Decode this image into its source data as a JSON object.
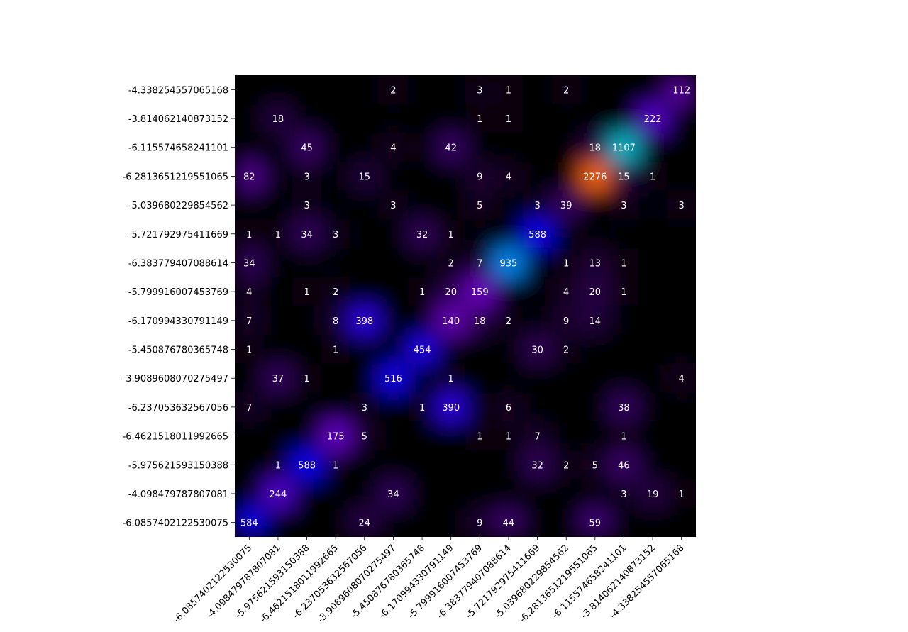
{
  "chart_data": {
    "type": "heatmap",
    "title": "",
    "xlabel": "",
    "ylabel": "",
    "colormap": "gnuplot2",
    "background": "#000000",
    "x_categories": [
      "-6.0857402122530075",
      "-4.098479787807081",
      "-5.975621593150388",
      "-6.4621518011992665",
      "-6.237053632567056",
      "-3.9089608070275497",
      "-5.450876780365748",
      "-6.170994330791149",
      "-5.799916007453769",
      "-6.383779407088614",
      "-5.721792975411669",
      "-5.039680229854562",
      "-6.2813651219551065",
      "-6.115574658241101",
      "-3.814062140873152",
      "-4.338254557065168"
    ],
    "y_categories": [
      "-4.338254557065168",
      "-3.814062140873152",
      "-6.115574658241101",
      "-6.2813651219551065",
      "-5.039680229854562",
      "-5.721792975411669",
      "-6.383779407088614",
      "-5.799916007453769",
      "-6.170994330791149",
      "-5.450876780365748",
      "-3.9089608070275497",
      "-6.237053632567056",
      "-6.4621518011992665",
      "-5.975621593150388",
      "-4.098479787807081",
      "-6.0857402122530075"
    ],
    "matrix": [
      [
        0,
        0,
        0,
        0,
        0,
        2,
        0,
        0,
        3,
        1,
        0,
        2,
        0,
        0,
        0,
        112
      ],
      [
        0,
        18,
        0,
        0,
        0,
        0,
        0,
        0,
        1,
        1,
        0,
        0,
        0,
        0,
        222,
        0
      ],
      [
        0,
        0,
        45,
        0,
        0,
        4,
        0,
        42,
        0,
        0,
        0,
        0,
        18,
        1107,
        0,
        0
      ],
      [
        82,
        0,
        3,
        0,
        15,
        0,
        0,
        0,
        9,
        4,
        0,
        0,
        2276,
        15,
        1,
        0
      ],
      [
        0,
        0,
        3,
        0,
        0,
        3,
        0,
        0,
        5,
        0,
        3,
        39,
        0,
        3,
        0,
        3
      ],
      [
        1,
        1,
        34,
        3,
        0,
        0,
        32,
        1,
        0,
        0,
        588,
        0,
        0,
        0,
        0,
        0
      ],
      [
        34,
        0,
        0,
        0,
        0,
        0,
        0,
        2,
        7,
        935,
        0,
        1,
        13,
        1,
        0,
        0
      ],
      [
        4,
        0,
        1,
        2,
        0,
        0,
        1,
        20,
        159,
        0,
        0,
        4,
        20,
        1,
        0,
        0
      ],
      [
        7,
        0,
        0,
        8,
        398,
        0,
        0,
        140,
        18,
        2,
        0,
        9,
        14,
        0,
        0,
        0
      ],
      [
        1,
        0,
        0,
        1,
        0,
        0,
        454,
        0,
        0,
        0,
        30,
        2,
        0,
        0,
        0,
        0
      ],
      [
        0,
        37,
        1,
        0,
        0,
        516,
        0,
        1,
        0,
        0,
        0,
        0,
        0,
        0,
        0,
        4
      ],
      [
        7,
        0,
        0,
        0,
        3,
        0,
        1,
        390,
        0,
        6,
        0,
        0,
        0,
        38,
        0,
        0
      ],
      [
        0,
        0,
        0,
        175,
        5,
        0,
        0,
        0,
        1,
        1,
        7,
        0,
        0,
        1,
        0,
        0
      ],
      [
        0,
        1,
        588,
        1,
        0,
        0,
        0,
        0,
        0,
        0,
        32,
        2,
        5,
        46,
        0,
        0
      ],
      [
        0,
        244,
        0,
        0,
        0,
        34,
        0,
        0,
        0,
        0,
        0,
        0,
        0,
        3,
        19,
        1
      ],
      [
        584,
        0,
        0,
        0,
        24,
        0,
        0,
        0,
        9,
        44,
        0,
        0,
        59,
        0,
        0,
        0
      ]
    ]
  }
}
